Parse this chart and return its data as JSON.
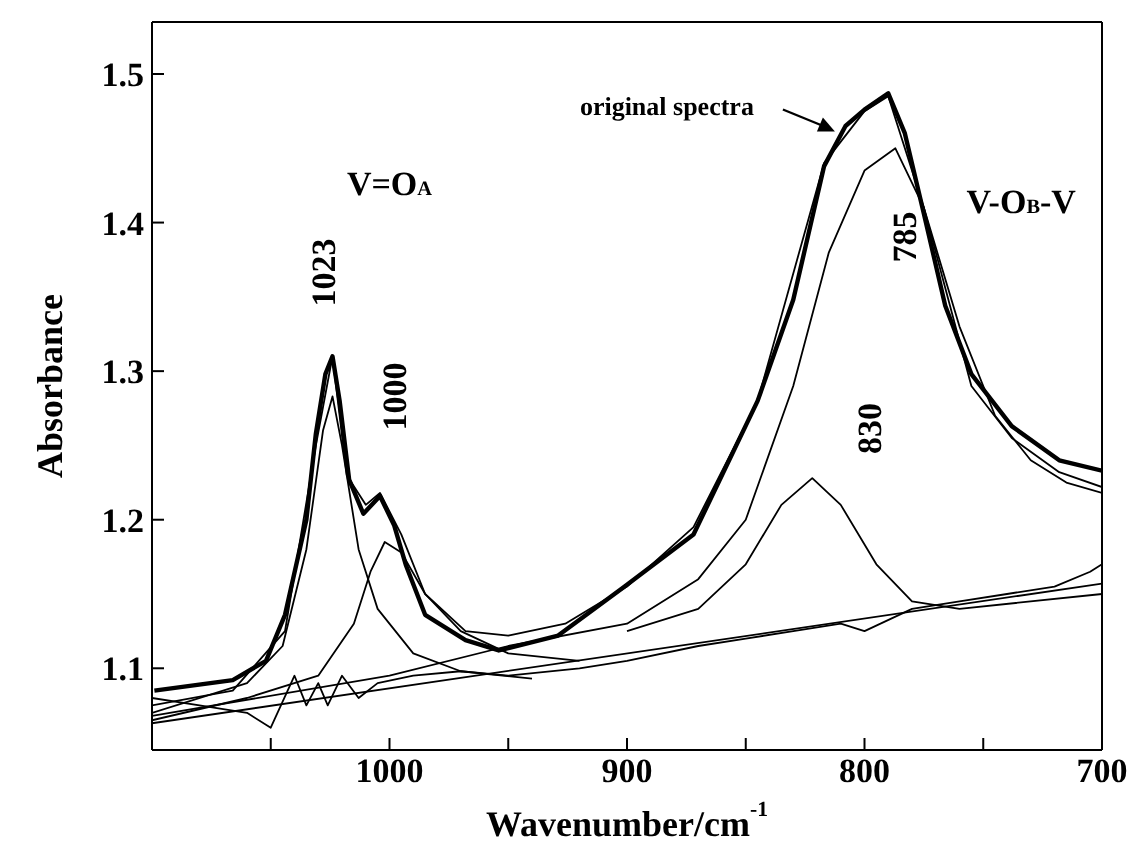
{
  "chart_data": {
    "type": "line",
    "xlabel": "Wavenumber/cm$^{-1}$",
    "ylabel": "Absorbance",
    "xlim": [
      1100,
      700
    ],
    "ylim": [
      1.045,
      1.535
    ],
    "xticks": [
      {
        "value": 1050,
        "label": null
      },
      1000,
      {
        "value": 950,
        "label": null
      },
      900,
      {
        "value": 850,
        "label": null
      },
      800,
      {
        "value": 750,
        "label": null
      },
      700
    ],
    "yticks": [
      1.1,
      1.2,
      1.3,
      1.4,
      1.5
    ],
    "marker": "none",
    "line_style": "solid",
    "series": [
      {
        "color": "#000000",
        "x": [
          1099,
          1066,
          1052,
          1044,
          1035,
          1031,
          1027,
          1024,
          1021,
          1017,
          1011,
          1004,
          998,
          993,
          985,
          968,
          954,
          929,
          901,
          872,
          845,
          830,
          817,
          808,
          800,
          790,
          783,
          775,
          766,
          755,
          738,
          718,
          700
        ],
        "values": [
          1.085,
          1.092,
          1.105,
          1.136,
          1.2,
          1.258,
          1.298,
          1.31,
          1.28,
          1.227,
          1.204,
          1.216,
          1.196,
          1.169,
          1.136,
          1.119,
          1.112,
          1.122,
          1.155,
          1.19,
          1.28,
          1.348,
          1.438,
          1.465,
          1.476,
          1.487,
          1.46,
          1.406,
          1.344,
          1.298,
          1.263,
          1.24,
          1.233
        ]
      },
      {
        "color": "#000000",
        "x": [
          1100,
          1066,
          1044,
          1031,
          1024,
          1018,
          1010,
          1004,
          995,
          985,
          968,
          950,
          926,
          900,
          872,
          845,
          817,
          800,
          790,
          775,
          755,
          738,
          718,
          700
        ],
        "values": [
          1.075,
          1.085,
          1.125,
          1.25,
          1.31,
          1.23,
          1.21,
          1.218,
          1.19,
          1.15,
          1.125,
          1.122,
          1.13,
          1.155,
          1.195,
          1.28,
          1.44,
          1.475,
          1.485,
          1.41,
          1.29,
          1.255,
          1.232,
          1.222
        ]
      },
      {
        "color": "#000000",
        "x": [
          1100,
          1060,
          1045,
          1035,
          1028,
          1024,
          1020,
          1013,
          1005,
          990,
          970,
          940
        ],
        "values": [
          1.07,
          1.09,
          1.115,
          1.18,
          1.26,
          1.283,
          1.25,
          1.18,
          1.14,
          1.11,
          1.098,
          1.093
        ]
      },
      {
        "color": "#000000",
        "x": [
          1100,
          1060,
          1030,
          1015,
          1008,
          1002,
          995,
          985,
          970,
          950,
          920
        ],
        "values": [
          1.065,
          1.08,
          1.095,
          1.13,
          1.165,
          1.185,
          1.178,
          1.15,
          1.125,
          1.11,
          1.105
        ]
      },
      {
        "color": "#000000",
        "x": [
          900,
          870,
          850,
          835,
          822,
          810,
          795,
          780,
          760,
          700
        ],
        "values": [
          1.125,
          1.14,
          1.17,
          1.21,
          1.228,
          1.21,
          1.17,
          1.145,
          1.14,
          1.15
        ]
      },
      {
        "color": "#000000",
        "x": [
          1100,
          1000,
          950,
          900,
          870,
          850,
          830,
          815,
          800,
          787,
          775,
          760,
          745,
          730,
          715,
          700
        ],
        "values": [
          1.068,
          1.095,
          1.115,
          1.13,
          1.16,
          1.2,
          1.29,
          1.38,
          1.435,
          1.45,
          1.41,
          1.33,
          1.27,
          1.24,
          1.225,
          1.218
        ]
      },
      {
        "color": "#000000",
        "x": [
          1100,
          700
        ],
        "values": [
          1.063,
          1.157
        ]
      },
      {
        "color": "#000000",
        "x": [
          1100,
          1080,
          1060,
          1050,
          1040,
          1035,
          1030,
          1026,
          1020,
          1013,
          1005,
          990,
          970,
          950,
          920,
          900,
          870,
          850,
          830,
          810,
          800,
          780,
          760,
          740,
          720,
          705,
          700
        ],
        "values": [
          1.08,
          1.075,
          1.07,
          1.06,
          1.095,
          1.075,
          1.09,
          1.075,
          1.095,
          1.08,
          1.09,
          1.095,
          1.098,
          1.095,
          1.1,
          1.105,
          1.115,
          1.12,
          1.125,
          1.13,
          1.125,
          1.14,
          1.145,
          1.15,
          1.155,
          1.165,
          1.17
        ]
      }
    ],
    "annotations": [
      "original spectra",
      "V=O$_{A}$",
      "1023",
      "1000",
      "830",
      "785",
      "V-O$_{B}$-V"
    ]
  }
}
